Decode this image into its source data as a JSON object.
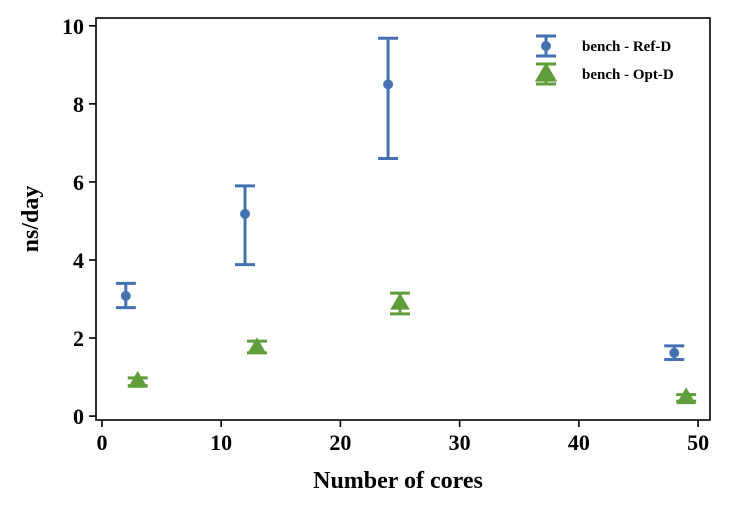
{
  "chart_data": {
    "type": "scatter",
    "title": "",
    "xlabel": "Number of cores",
    "ylabel": "ns/day",
    "xlim": [
      -0.5,
      51
    ],
    "ylim": [
      -0.1,
      10.2
    ],
    "xticks": [
      0,
      10,
      20,
      30,
      40,
      50
    ],
    "yticks": [
      0,
      2,
      4,
      6,
      8,
      10
    ],
    "grid": false,
    "legend_position": "top-right",
    "series": [
      {
        "name": "bench - Ref-D",
        "marker": "circle",
        "color": "#4472b0",
        "points": [
          {
            "x": 2,
            "y": 3.08,
            "ymin": 2.78,
            "ymax": 3.4
          },
          {
            "x": 12,
            "y": 5.18,
            "ymin": 3.88,
            "ymax": 5.9
          },
          {
            "x": 24,
            "y": 8.5,
            "ymin": 6.6,
            "ymax": 9.68
          },
          {
            "x": 48,
            "y": 1.62,
            "ymin": 1.45,
            "ymax": 1.8
          }
        ]
      },
      {
        "name": "bench - Opt-D",
        "marker": "triangle",
        "color": "#5f9e3a",
        "points": [
          {
            "x": 3,
            "y": 0.9,
            "ymin": 0.78,
            "ymax": 0.98
          },
          {
            "x": 13,
            "y": 1.76,
            "ymin": 1.62,
            "ymax": 1.92
          },
          {
            "x": 25,
            "y": 2.9,
            "ymin": 2.62,
            "ymax": 3.15
          },
          {
            "x": 49,
            "y": 0.48,
            "ymin": 0.38,
            "ymax": 0.55
          }
        ]
      }
    ]
  }
}
